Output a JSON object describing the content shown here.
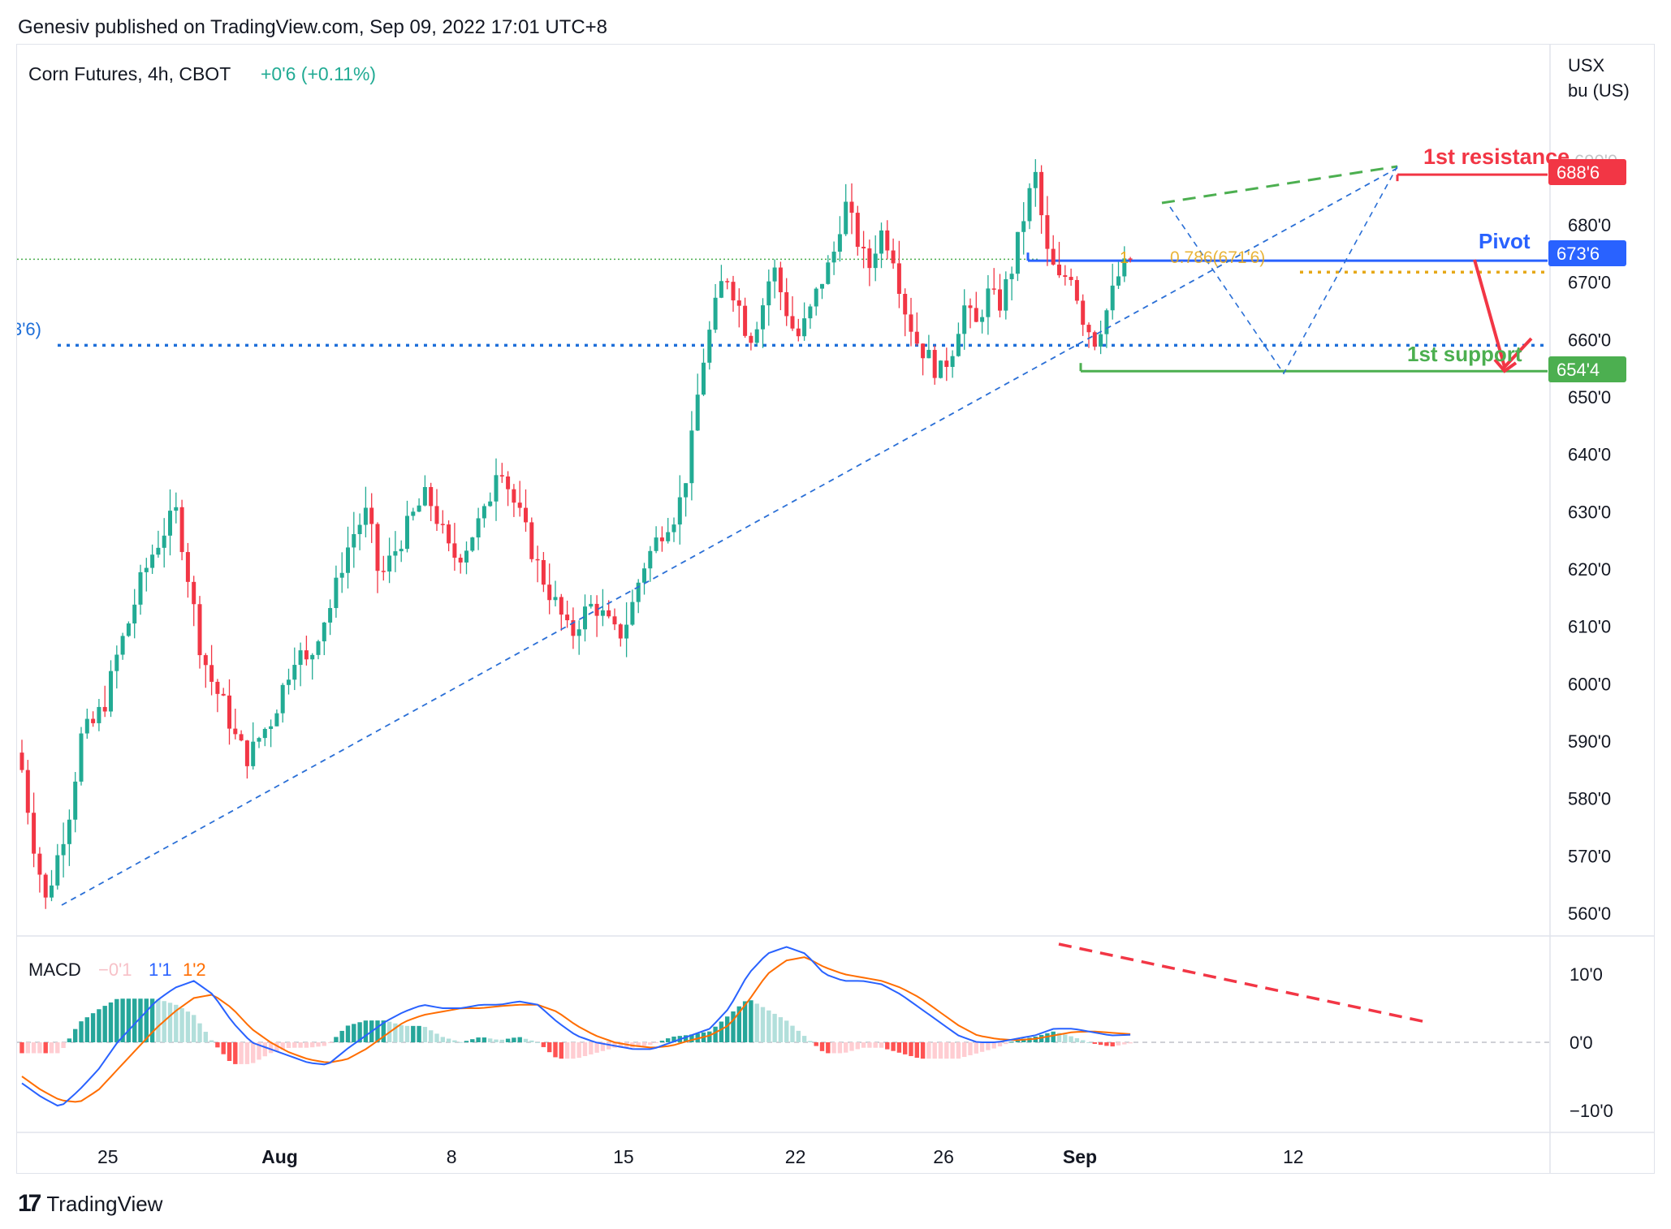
{
  "header": {
    "published_by": "Genesiv published on TradingView.com, Sep 09, 2022 17:01 UTC+8"
  },
  "legend": {
    "symbol": "Corn Futures, 4h, CBOT",
    "change": "+0'6 (+0.11%)",
    "change_color": "#22ab94"
  },
  "axis": {
    "unit_line1": "USX",
    "unit_line2": "bu (US)",
    "price_ticks": [
      "680'0",
      "670'0",
      "660'0",
      "650'0",
      "640'0",
      "630'0",
      "620'0",
      "610'0",
      "600'0",
      "590'0",
      "580'0",
      "570'0",
      "560'0"
    ],
    "price_tick_values": [
      680,
      670,
      660,
      650,
      640,
      630,
      620,
      610,
      600,
      590,
      580,
      570,
      560
    ],
    "date_ticks": [
      "25",
      "Aug",
      "8",
      "15",
      "22",
      "26",
      "Sep",
      "12"
    ],
    "date_tick_index": [
      6,
      35,
      64,
      93,
      122,
      147,
      170,
      206
    ]
  },
  "badges": {
    "resistance_value": "688'6",
    "pivot_value": "673'6",
    "support_value": "654'4",
    "offscreen_label": "3'6)",
    "fib_label": "0.786(671'6)",
    "fib_prefix": "1",
    "partial_tick_top": "690'0"
  },
  "annotations": {
    "resistance": "1st resistance",
    "pivot": "Pivot",
    "support": "1st support"
  },
  "macd": {
    "label": "MACD",
    "hist_value": "−0'1",
    "macd_value": "1'1",
    "signal_value": "1'2",
    "ticks": [
      "10'0",
      "0'0",
      "−10'0"
    ],
    "tick_values": [
      10,
      0,
      -10
    ]
  },
  "colors": {
    "up": "#22ab94",
    "down": "#f23645",
    "resistance": "#f23645",
    "pivot": "#2962ff",
    "support": "#4caf50",
    "macd_line": "#2962ff",
    "signal_line": "#ff6d00",
    "dotted_level": "#1e6fd9",
    "fib": "#e6a817"
  },
  "footer": {
    "brand": "TradingView"
  },
  "chart_data": {
    "type": "candlestick",
    "x_start": "Jul 24, 2022",
    "x_end": "Sep 12, 2022",
    "price_range": [
      558,
      700
    ],
    "levels": {
      "resistance": 688.75,
      "pivot": 673.75,
      "support": 654.5,
      "fib_0786": 671.75,
      "dotted_blue": 659,
      "dotted_green": 674
    },
    "anchor_prices": [
      585,
      572,
      562,
      570,
      578,
      591,
      593,
      597,
      605,
      611,
      618,
      623,
      627,
      630,
      618,
      606,
      600,
      596,
      590,
      587,
      591,
      594,
      600,
      606,
      603,
      610,
      614,
      622,
      627,
      630,
      618,
      622,
      626,
      630,
      633,
      628,
      622,
      623,
      627,
      630,
      640,
      633,
      628,
      622,
      617,
      613,
      608,
      612,
      614,
      611,
      608,
      612,
      620,
      624,
      628,
      630,
      639,
      655,
      664,
      672,
      667,
      660,
      665,
      673,
      666,
      660,
      664,
      670,
      674,
      684,
      678,
      672,
      679,
      676,
      666,
      660,
      657,
      654,
      658,
      666,
      662,
      668,
      666,
      672,
      681,
      689,
      675,
      670,
      672,
      664,
      660,
      665,
      671,
      674
    ],
    "macd_anchor_macd": [
      -6,
      -8,
      -9.5,
      -7,
      -4,
      0,
      3,
      6,
      8,
      9,
      7,
      3,
      0,
      -1,
      -2,
      -3,
      -3.3,
      -1,
      1,
      3,
      4.5,
      5.5,
      5,
      5,
      5.5,
      5.5,
      6,
      5.5,
      3,
      1,
      0,
      -0.5,
      -1,
      -1,
      0,
      1,
      2,
      5,
      10,
      13,
      14,
      13,
      10,
      9,
      9,
      8.5,
      7,
      5,
      3,
      1,
      0,
      0,
      0.5,
      1,
      2,
      2,
      1.5,
      1,
      1.1
    ],
    "macd_anchor_signal": [
      -5,
      -7,
      -8.5,
      -8.8,
      -7,
      -4,
      -1,
      2,
      4.5,
      6.5,
      7,
      5,
      2,
      0,
      -1.5,
      -2.5,
      -3,
      -2.5,
      -1,
      1,
      3,
      4,
      4.5,
      5,
      5,
      5.3,
      5.5,
      5.5,
      4.5,
      2.5,
      1,
      0,
      -0.5,
      -0.8,
      -0.5,
      0.3,
      1,
      2.5,
      6,
      10,
      12,
      12.5,
      11,
      10,
      9.5,
      9,
      8,
      6.5,
      4.5,
      2.5,
      1,
      0.5,
      0.3,
      0.5,
      1,
      1.5,
      1.6,
      1.4,
      1.2
    ]
  }
}
